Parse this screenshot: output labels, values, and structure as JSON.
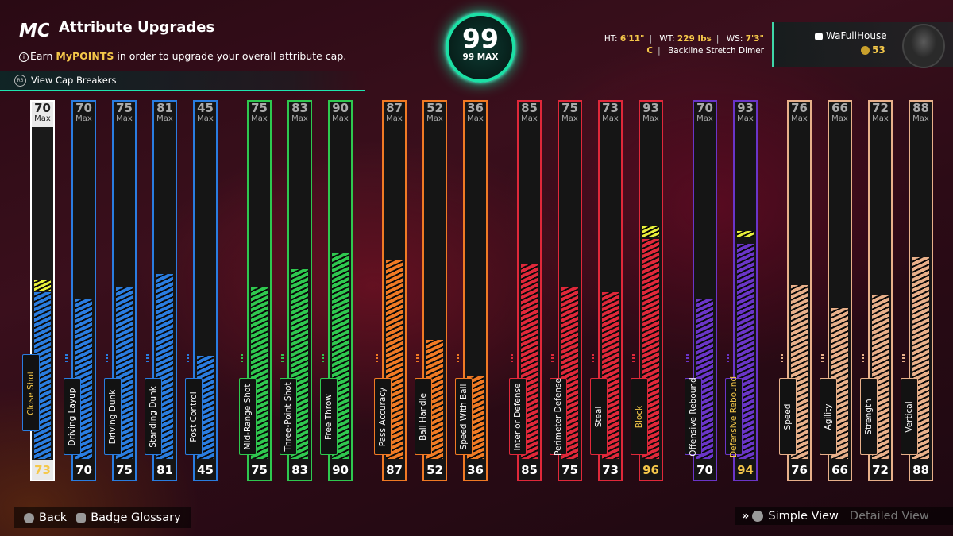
{
  "header": {
    "logo": "MC",
    "title": "Attribute Upgrades",
    "subtitle_pre": "Earn ",
    "subtitle_highlight": "MyPOINTS",
    "subtitle_post": " in order to upgrade your overall attribute cap.",
    "cap_breakers": "View Cap Breakers"
  },
  "overall": {
    "value": "99",
    "max": "99 MAX"
  },
  "player": {
    "ht_label": "HT:",
    "ht": "6'11\"",
    "wt_label": "WT:",
    "wt": "229 lbs",
    "ws_label": "WS:",
    "ws": "7'3\"",
    "position": "C",
    "archetype": "Backline Stretch Dimer",
    "gamertag": "WaFullHouse",
    "vc": "53"
  },
  "colors": {
    "finishing": "#2a7de0",
    "shooting": "#2fc84f",
    "playmaking": "#f07a24",
    "defense": "#e0283a",
    "rebounding": "#6a35c8",
    "physicals": "#e8b08a",
    "cap_break": "#e7ef3a",
    "selected": "#ffffff",
    "gold": "#f5c84a"
  },
  "attributes": [
    {
      "name": "Close Shot",
      "group": "finishing",
      "max": "70",
      "max_label": "Max",
      "current": "73",
      "value": 73,
      "cap": true,
      "selected": true
    },
    {
      "name": "Driving Layup",
      "group": "finishing",
      "max": "70",
      "max_label": "Max",
      "current": "70",
      "value": 70
    },
    {
      "name": "Driving Dunk",
      "group": "finishing",
      "max": "75",
      "max_label": "Max",
      "current": "75",
      "value": 75
    },
    {
      "name": "Standing Dunk",
      "group": "finishing",
      "max": "81",
      "max_label": "Max",
      "current": "81",
      "value": 81
    },
    {
      "name": "Post Control",
      "group": "finishing",
      "max": "45",
      "max_label": "Max",
      "current": "45",
      "value": 45
    },
    {
      "name": "Mid-Range Shot",
      "group": "shooting",
      "max": "75",
      "max_label": "Max",
      "current": "75",
      "value": 75
    },
    {
      "name": "Three-Point Shot",
      "group": "shooting",
      "max": "83",
      "max_label": "Max",
      "current": "83",
      "value": 83
    },
    {
      "name": "Free Throw",
      "group": "shooting",
      "max": "90",
      "max_label": "Max",
      "current": "90",
      "value": 90
    },
    {
      "name": "Pass Accuracy",
      "group": "playmaking",
      "max": "87",
      "max_label": "Max",
      "current": "87",
      "value": 87
    },
    {
      "name": "Ball Handle",
      "group": "playmaking",
      "max": "52",
      "max_label": "Max",
      "current": "52",
      "value": 52
    },
    {
      "name": "Speed With Ball",
      "group": "playmaking",
      "max": "36",
      "max_label": "Max",
      "current": "36",
      "value": 36
    },
    {
      "name": "Interior Defense",
      "group": "defense",
      "max": "85",
      "max_label": "Max",
      "current": "85",
      "value": 85
    },
    {
      "name": "Perimeter Defense",
      "group": "defense",
      "max": "75",
      "max_label": "Max",
      "current": "75",
      "value": 75
    },
    {
      "name": "Steal",
      "group": "defense",
      "max": "73",
      "max_label": "Max",
      "current": "73",
      "value": 73
    },
    {
      "name": "Block",
      "group": "defense",
      "max": "93",
      "max_label": "Max",
      "current": "96",
      "value": 96,
      "cap": true
    },
    {
      "name": "Offensive Rebound",
      "group": "rebounding",
      "max": "70",
      "max_label": "Max",
      "current": "70",
      "value": 70
    },
    {
      "name": "Defensive Rebound",
      "group": "rebounding",
      "max": "93",
      "max_label": "Max",
      "current": "94",
      "value": 94,
      "cap": true
    },
    {
      "name": "Speed",
      "group": "physicals",
      "max": "76",
      "max_label": "Max",
      "current": "76",
      "value": 76
    },
    {
      "name": "Agility",
      "group": "physicals",
      "max": "66",
      "max_label": "Max",
      "current": "66",
      "value": 66
    },
    {
      "name": "Strength",
      "group": "physicals",
      "max": "72",
      "max_label": "Max",
      "current": "72",
      "value": 72
    },
    {
      "name": "Vertical",
      "group": "physicals",
      "max": "88",
      "max_label": "Max",
      "current": "88",
      "value": 88
    }
  ],
  "footer": {
    "back": "Back",
    "badge_glossary": "Badge Glossary",
    "simple_view": "Simple View",
    "detailed_view": "Detailed View"
  }
}
